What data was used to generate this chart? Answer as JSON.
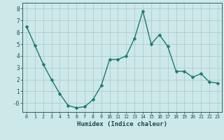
{
  "x": [
    0,
    1,
    2,
    3,
    4,
    5,
    6,
    7,
    8,
    9,
    10,
    11,
    12,
    13,
    14,
    15,
    16,
    17,
    18,
    19,
    20,
    21,
    22,
    23
  ],
  "y": [
    6.5,
    4.9,
    3.3,
    2.0,
    0.8,
    -0.2,
    -0.4,
    -0.3,
    0.3,
    1.5,
    3.7,
    3.7,
    4.0,
    5.5,
    7.8,
    5.0,
    5.8,
    4.8,
    2.7,
    2.7,
    2.2,
    2.5,
    1.8,
    1.7
  ],
  "xlabel": "Humidex (Indice chaleur)",
  "line_color": "#1a7a6e",
  "marker_color": "#1a7a6e",
  "bg_color": "#cde8e8",
  "grid_color": "#aecccc",
  "axis_color": "#2a6060",
  "tick_label_color": "#1a4a4a",
  "xlabel_color": "#1a4a4a",
  "ylim": [
    -0.75,
    8.5
  ],
  "xlim": [
    -0.5,
    23.5
  ],
  "yticks": [
    0,
    1,
    2,
    3,
    4,
    5,
    6,
    7,
    8
  ],
  "ytick_labels": [
    "-0",
    "1",
    "2",
    "3",
    "4",
    "5",
    "6",
    "7",
    "8"
  ],
  "xtick_labels": [
    "0",
    "1",
    "2",
    "3",
    "4",
    "5",
    "6",
    "7",
    "8",
    "9",
    "10",
    "11",
    "12",
    "13",
    "14",
    "15",
    "16",
    "17",
    "18",
    "19",
    "20",
    "21",
    "22",
    "23"
  ],
  "linewidth": 1.0,
  "markersize": 2.5
}
